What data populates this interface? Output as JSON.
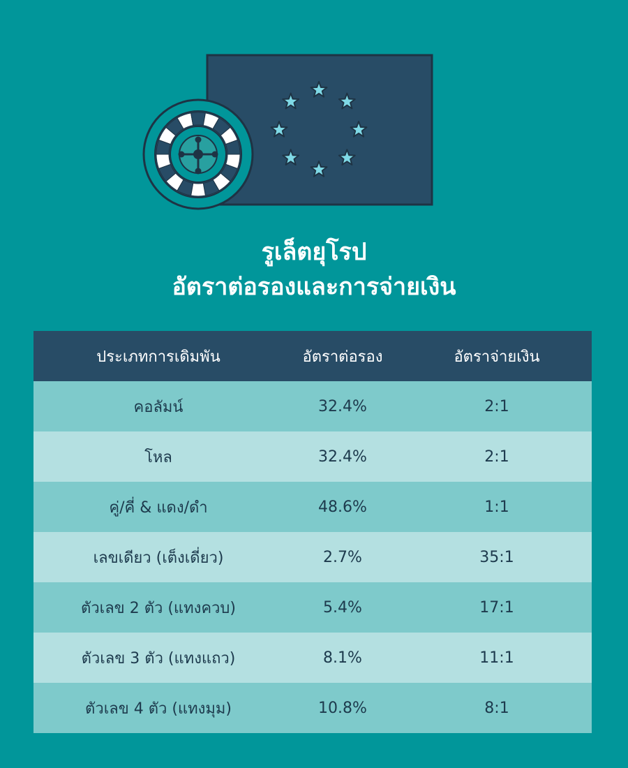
{
  "title": {
    "line1": "รูเล็ตยุโรป",
    "line2": "อัตราต่อรองและการจ่ายเงิน"
  },
  "table": {
    "headers": [
      "ประเภทการเดิมพัน",
      "อัตราต่อรอง",
      "อัตราจ่ายเงิน"
    ],
    "rows": [
      [
        "คอลัมน์",
        "32.4%",
        "2:1"
      ],
      [
        "โหล",
        "32.4%",
        "2:1"
      ],
      [
        "คู่/คี่ & แดง/ดำ",
        "48.6%",
        "1:1"
      ],
      [
        "เลขเดียว (เต็งเดี่ยว)",
        "2.7%",
        "35:1"
      ],
      [
        "ตัวเลข 2 ตัว (แทงควบ)",
        "5.4%",
        "17:1"
      ],
      [
        "ตัวเลข 3 ตัว (แทงแถว)",
        "8.1%",
        "11:1"
      ],
      [
        "ตัวเลข 4 ตัว (แทงมุม)",
        "10.8%",
        "8:1"
      ]
    ]
  },
  "colors": {
    "background": "#01969a",
    "header": "#284c66",
    "row_dark": "#7ecacb",
    "row_light": "#b4e0e1",
    "flag": "#284c66",
    "star": "#7fd9e6"
  },
  "icons": [
    "roulette-wheel-icon",
    "eu-flag-icon",
    "star-icon"
  ]
}
